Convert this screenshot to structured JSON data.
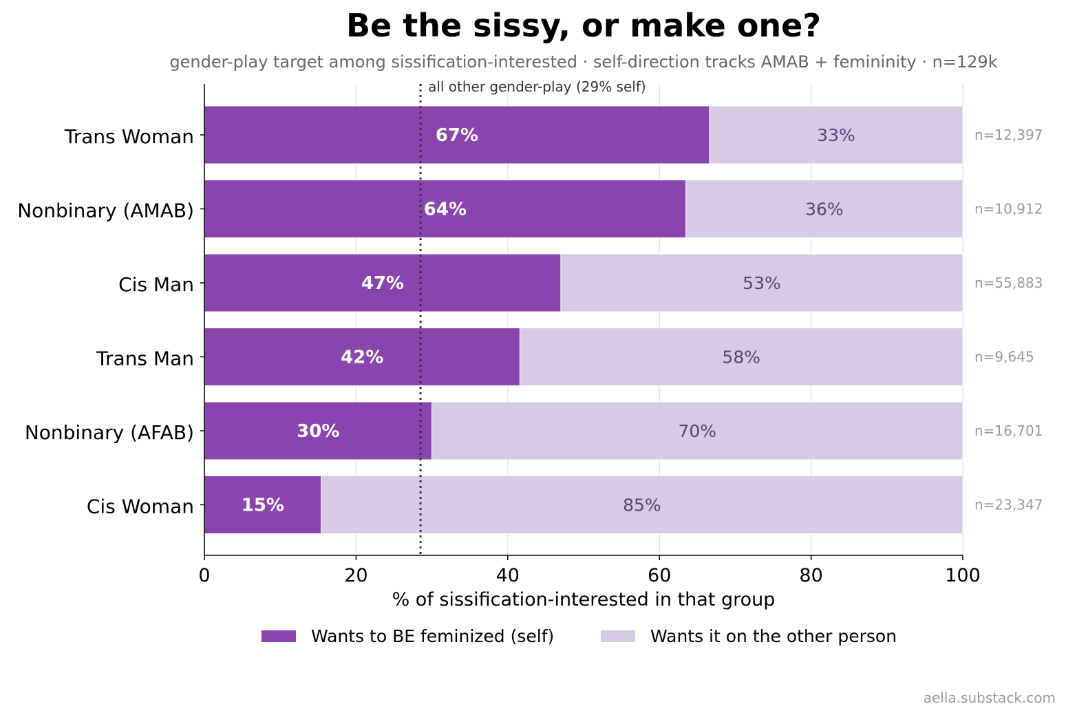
{
  "chart_data": {
    "type": "bar",
    "orientation": "horizontal",
    "stacked": true,
    "title": "Be the sissy, or make one?",
    "subtitle": "gender-play target among sissification-interested · self-direction tracks AMAB + femininity · n=129k",
    "xlabel": "% of sissification-interested in that group",
    "ylabel": "",
    "xlim": [
      0,
      100
    ],
    "xticks": [
      "0",
      "20",
      "40",
      "60",
      "80",
      "100"
    ],
    "grid": "vertical",
    "legend_position": "bottom-center",
    "categories": [
      "Trans Woman",
      "Nonbinary (AMAB)",
      "Cis Man",
      "Trans Man",
      "Nonbinary (AFAB)",
      "Cis Woman"
    ],
    "series": [
      {
        "name": "Wants to BE feminized (self)",
        "color": "#8a44ad",
        "values": [
          66.6,
          63.5,
          47.0,
          41.6,
          30.0,
          15.4
        ],
        "labels": [
          "67%",
          "64%",
          "47%",
          "42%",
          "30%",
          "15%"
        ]
      },
      {
        "name": "Wants it on the other person",
        "color": "#d8c9e5",
        "values": [
          33.4,
          36.5,
          53.0,
          58.4,
          70.0,
          84.6
        ],
        "labels": [
          "33%",
          "36%",
          "53%",
          "58%",
          "70%",
          "85%"
        ]
      }
    ],
    "n_labels": [
      "n=12,397",
      "n=10,912",
      "n=55,883",
      "n=9,645",
      "n=16,701",
      "n=23,347"
    ],
    "reference_line": {
      "value": 28.5,
      "label": "all other gender-play (29% self)",
      "style": "dotted"
    },
    "credit": "aella.substack.com"
  }
}
